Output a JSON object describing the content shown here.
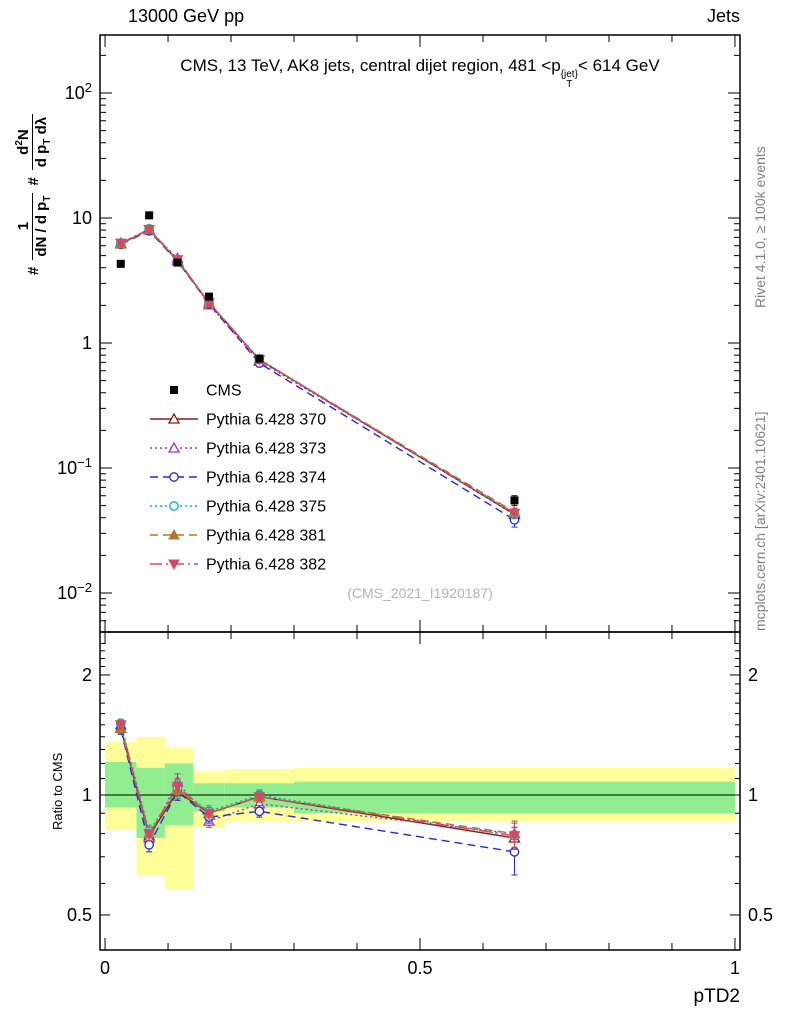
{
  "header": {
    "left": "13000 GeV pp",
    "right": "Jets"
  },
  "title": {
    "pre": "CMS, 13 TeV, AK8 jets, central dijet region, 481 <p",
    "sup": "{jet}",
    "sub": "T",
    "post": "< 614 GeV"
  },
  "ylabel": {
    "hash1": "#",
    "f1_num": "1",
    "f1_den_a": "dN / d p",
    "f1_den_sub": "T",
    "hash2": "#",
    "f2_num_a": "d",
    "f2_num_sup": "2",
    "f2_num_b": "N",
    "f2_den_a": "d p",
    "f2_den_sub": "T",
    "f2_den_b": " dλ"
  },
  "ratio_label": "Ratio to CMS",
  "xlabel": "pTD2",
  "watermark": "(CMS_2021_I1920187)",
  "side_texts": {
    "top_right": "Rivet 4.1.0, ≥ 100k events",
    "bottom_right": "mcplots.cern.ch [arXiv:2401.10621]"
  },
  "chart_data": {
    "type": "line",
    "x": [
      0.025,
      0.07,
      0.115,
      0.165,
      0.245,
      0.65
    ],
    "cms": {
      "label": "CMS",
      "color": "#000000",
      "marker": "square-filled",
      "y": [
        4.3,
        10.5,
        4.4,
        2.35,
        0.75,
        0.055
      ],
      "yerr": [
        0.25,
        0.4,
        0.25,
        0.12,
        0.04,
        0.005
      ]
    },
    "series": [
      {
        "label": "Pythia 6.428 370",
        "color": "#8b1a1a",
        "line": "solid",
        "marker": "triangle-open",
        "y": [
          6.2,
          8.1,
          4.55,
          2.1,
          0.735,
          0.0425
        ],
        "ratio": [
          1.47,
          0.79,
          1.02,
          0.9,
          0.99,
          0.78
        ],
        "ratio_err": [
          0.04,
          0.03,
          0.05,
          0.03,
          0.03,
          0.05
        ]
      },
      {
        "label": "Pythia 6.428 373",
        "color": "#a033cc",
        "line": "dotted",
        "marker": "triangle-open",
        "y": [
          6.3,
          8.0,
          4.75,
          2.02,
          0.715,
          0.0435
        ],
        "ratio": [
          1.5,
          0.78,
          1.08,
          0.86,
          0.95,
          0.8
        ],
        "ratio_err": [
          0.04,
          0.03,
          0.05,
          0.03,
          0.03,
          0.06
        ]
      },
      {
        "label": "Pythia 6.428 374",
        "color": "#2828cc",
        "line": "dashed",
        "marker": "circle-open",
        "y": [
          6.15,
          7.9,
          4.5,
          2.06,
          0.69,
          0.0385
        ],
        "ratio": [
          1.46,
          0.75,
          1.02,
          0.88,
          0.91,
          0.72
        ],
        "ratio_err": [
          0.04,
          0.03,
          0.05,
          0.03,
          0.03,
          0.09
        ]
      },
      {
        "label": "Pythia 6.428 375",
        "color": "#00b8b0",
        "line": "dotted",
        "marker": "circle-open",
        "y": [
          6.3,
          8.2,
          4.6,
          2.12,
          0.745,
          0.0425
        ],
        "ratio": [
          1.51,
          0.81,
          1.04,
          0.91,
          1.0,
          0.79
        ],
        "ratio_err": [
          0.04,
          0.03,
          0.05,
          0.03,
          0.03,
          0.06
        ]
      },
      {
        "label": "Pythia 6.428 381",
        "color": "#b5752f",
        "line": "dashed",
        "marker": "triangle-filled",
        "y": [
          6.2,
          8.1,
          4.55,
          2.1,
          0.735,
          0.0445
        ],
        "ratio": [
          1.47,
          0.8,
          1.03,
          0.9,
          0.99,
          0.8
        ],
        "ratio_err": [
          0.04,
          0.03,
          0.05,
          0.03,
          0.03,
          0.06
        ]
      },
      {
        "label": "Pythia 6.428 382",
        "color": "#d64862",
        "line": "dashdot",
        "marker": "triangle-down-filled",
        "y": [
          6.3,
          8.1,
          4.65,
          2.1,
          0.735,
          0.0435
        ],
        "ratio": [
          1.5,
          0.8,
          1.05,
          0.9,
          0.99,
          0.79
        ],
        "ratio_err": [
          0.04,
          0.03,
          0.05,
          0.03,
          0.03,
          0.06
        ]
      }
    ],
    "axes": {
      "x_major": [
        {
          "v": 0,
          "label": "0"
        },
        {
          "v": 0.5,
          "label": "0.5"
        },
        {
          "v": 1,
          "label": "1"
        }
      ],
      "x_minor_step": 0.1,
      "y_main": [
        {
          "v": 100,
          "base": "10",
          "exp": "2"
        },
        {
          "v": 10,
          "base": "10",
          "exp": ""
        },
        {
          "v": 1,
          "base": "1",
          "exp": ""
        },
        {
          "v": 0.1,
          "base": "10",
          "exp": "−1"
        },
        {
          "v": 0.01,
          "base": "10",
          "exp": "−2"
        }
      ],
      "y_ratio": [
        {
          "v": 2,
          "label": "2"
        },
        {
          "v": 1,
          "label": "1"
        },
        {
          "v": 0.5,
          "label": "0.5"
        }
      ],
      "y_main_range": [
        0.005,
        290
      ],
      "y_ratio_range": [
        0.41,
        2.52
      ],
      "x_range": [
        -0.008,
        1.008
      ]
    },
    "bands": {
      "yellow_color": "#ffff99",
      "green_color": "#90ee90",
      "yellow": [
        {
          "x1": 0.0,
          "x2": 0.05,
          "lo": 0.82,
          "hi": 1.36
        },
        {
          "x1": 0.05,
          "x2": 0.095,
          "lo": 0.63,
          "hi": 1.4
        },
        {
          "x1": 0.095,
          "x2": 0.14,
          "lo": 0.58,
          "hi": 1.32
        },
        {
          "x1": 0.14,
          "x2": 0.19,
          "lo": 0.83,
          "hi": 1.15
        },
        {
          "x1": 0.19,
          "x2": 0.3,
          "lo": 0.86,
          "hi": 1.16
        },
        {
          "x1": 0.3,
          "x2": 1.0,
          "lo": 0.86,
          "hi": 1.17
        }
      ],
      "green": [
        {
          "x1": 0.0,
          "x2": 0.05,
          "lo": 0.93,
          "hi": 1.21
        },
        {
          "x1": 0.05,
          "x2": 0.095,
          "lo": 0.78,
          "hi": 1.17
        },
        {
          "x1": 0.095,
          "x2": 0.14,
          "lo": 0.84,
          "hi": 1.2
        },
        {
          "x1": 0.14,
          "x2": 0.19,
          "lo": 0.91,
          "hi": 1.07
        },
        {
          "x1": 0.19,
          "x2": 0.3,
          "lo": 0.93,
          "hi": 1.07
        },
        {
          "x1": 0.3,
          "x2": 1.0,
          "lo": 0.9,
          "hi": 1.08
        }
      ]
    }
  }
}
